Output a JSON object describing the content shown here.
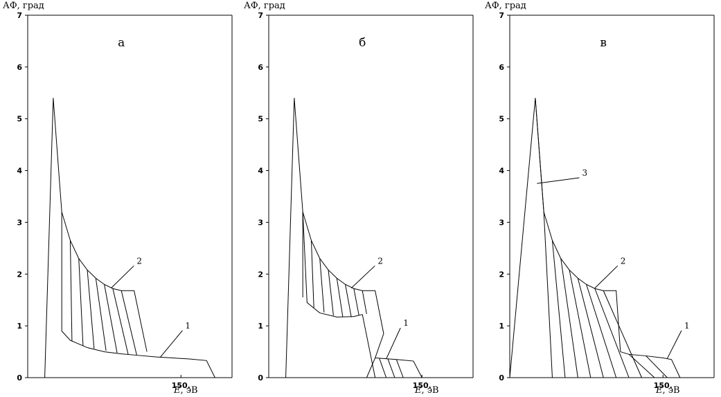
{
  "chart_data": [
    {
      "type": "line",
      "panel_label": "а",
      "ylabel": "АФ, град",
      "xlabel_var": "E",
      "xlabel_unit": ", эВ",
      "ylim": [
        0,
        7
      ],
      "yticks": [
        "0",
        "1",
        "2",
        "3",
        "4",
        "5",
        "6",
        "7"
      ],
      "xticks": [
        {
          "x": 150,
          "label": "150."
        }
      ],
      "xlim": [
        -30,
        210
      ],
      "peak": [
        [
          -10,
          0
        ],
        [
          0,
          5.4
        ]
      ],
      "series": [
        {
          "name": "1",
          "points": [
            [
              10,
              0.9
            ],
            [
              20,
              0.72
            ],
            [
              40,
              0.58
            ],
            [
              60,
              0.5
            ],
            [
              80,
              0.46
            ],
            [
              100,
              0.43
            ],
            [
              120,
              0.4
            ],
            [
              140,
              0.38
            ],
            [
              160,
              0.36
            ],
            [
              180,
              0.33
            ],
            [
              190,
              0.0
            ]
          ]
        },
        {
          "name": "2",
          "points": [
            [
              0,
              5.4
            ],
            [
              10,
              3.2
            ],
            [
              20,
              2.65
            ],
            [
              30,
              2.3
            ],
            [
              40,
              2.08
            ],
            [
              50,
              1.92
            ],
            [
              60,
              1.8
            ],
            [
              70,
              1.72
            ],
            [
              80,
              1.68
            ],
            [
              95,
              1.68
            ],
            [
              110,
              0.5
            ]
          ]
        }
      ],
      "hatch": [
        [
          [
            10,
            3.2
          ],
          [
            10,
            0.9
          ]
        ],
        [
          [
            20,
            2.65
          ],
          [
            22,
            0.7
          ]
        ],
        [
          [
            30,
            2.3
          ],
          [
            35,
            0.62
          ]
        ],
        [
          [
            40,
            2.08
          ],
          [
            48,
            0.56
          ]
        ],
        [
          [
            50,
            1.92
          ],
          [
            62,
            0.52
          ]
        ],
        [
          [
            60,
            1.8
          ],
          [
            75,
            0.48
          ]
        ],
        [
          [
            70,
            1.72
          ],
          [
            88,
            0.45
          ]
        ],
        [
          [
            80,
            1.68
          ],
          [
            98,
            0.44
          ]
        ]
      ],
      "curve_labels": [
        {
          "text": "1",
          "at": [
            126,
            0.4
          ],
          "label": [
            155,
            0.95
          ]
        },
        {
          "text": "2",
          "at": [
            68,
            1.73
          ],
          "label": [
            98,
            2.2
          ]
        }
      ]
    },
    {
      "type": "line",
      "panel_label": "б",
      "ylabel": "АФ, град",
      "xlabel_var": "E",
      "xlabel_unit": ", эВ",
      "ylim": [
        0,
        7
      ],
      "yticks": [
        "0",
        "1",
        "2",
        "3",
        "4",
        "5",
        "6",
        "7"
      ],
      "xticks": [
        {
          "x": 150,
          "label": "150."
        }
      ],
      "xlim": [
        -30,
        210
      ],
      "peak": [
        [
          -10,
          0
        ],
        [
          0,
          5.4
        ]
      ],
      "series": [
        {
          "name": "1",
          "points": [
            [
              95,
              0.38
            ],
            [
              120,
              0.35
            ],
            [
              140,
              0.32
            ],
            [
              150,
              0.0
            ]
          ]
        },
        {
          "name": "2",
          "points": [
            [
              0,
              5.4
            ],
            [
              10,
              3.2
            ],
            [
              20,
              2.65
            ],
            [
              30,
              2.3
            ],
            [
              40,
              2.08
            ],
            [
              50,
              1.92
            ],
            [
              60,
              1.8
            ],
            [
              70,
              1.72
            ],
            [
              80,
              1.68
            ],
            [
              95,
              1.68
            ],
            [
              105,
              0.85
            ],
            [
              95,
              0.38
            ],
            [
              85,
              0.0
            ]
          ]
        },
        {
          "name": "",
          "points": [
            [
              10,
              3.2
            ],
            [
              15,
              1.45
            ],
            [
              30,
              1.25
            ],
            [
              50,
              1.17
            ],
            [
              70,
              1.18
            ],
            [
              80,
              1.22
            ],
            [
              95,
              0.0
            ]
          ]
        }
      ],
      "hatch": [
        [
          [
            10,
            3.2
          ],
          [
            10,
            1.55
          ]
        ],
        [
          [
            20,
            2.65
          ],
          [
            23,
            1.35
          ]
        ],
        [
          [
            30,
            2.3
          ],
          [
            35,
            1.26
          ]
        ],
        [
          [
            40,
            2.08
          ],
          [
            46,
            1.2
          ]
        ],
        [
          [
            50,
            1.92
          ],
          [
            57,
            1.17
          ]
        ],
        [
          [
            60,
            1.8
          ],
          [
            67,
            1.17
          ]
        ],
        [
          [
            70,
            1.72
          ],
          [
            76,
            1.2
          ]
        ],
        [
          [
            80,
            1.68
          ],
          [
            85,
            1.23
          ]
        ],
        [
          [
            100,
            0.37
          ],
          [
            108,
            0.0
          ]
        ],
        [
          [
            110,
            0.36
          ],
          [
            118,
            0.0
          ]
        ],
        [
          [
            120,
            0.35
          ],
          [
            128,
            0.0
          ]
        ]
      ],
      "curve_labels": [
        {
          "text": "1",
          "at": [
            108,
            0.36
          ],
          "label": [
            128,
            1.0
          ]
        },
        {
          "text": "2",
          "at": [
            67,
            1.73
          ],
          "label": [
            98,
            2.2
          ]
        }
      ]
    },
    {
      "type": "line",
      "panel_label": "в",
      "ylabel": "АФ, град",
      "xlabel_var": "E",
      "xlabel_unit": ", эВ",
      "ylim": [
        0,
        7
      ],
      "yticks": [
        "0",
        "1",
        "2",
        "3",
        "4",
        "5",
        "6",
        "7"
      ],
      "xticks": [
        {
          "x": 150,
          "label": "150."
        }
      ],
      "xlim": [
        -30,
        210
      ],
      "peak": [
        [
          -30,
          0
        ],
        [
          0,
          5.4
        ]
      ],
      "series": [
        {
          "name": "1",
          "points": [
            [
              100,
              0.5
            ],
            [
              110,
              0.45
            ],
            [
              130,
              0.42
            ],
            [
              150,
              0.38
            ],
            [
              160,
              0.35
            ],
            [
              170,
              0.0
            ]
          ]
        },
        {
          "name": "2",
          "points": [
            [
              0,
              5.4
            ],
            [
              10,
              3.2
            ],
            [
              20,
              2.65
            ],
            [
              30,
              2.3
            ],
            [
              40,
              2.08
            ],
            [
              50,
              1.92
            ],
            [
              60,
              1.8
            ],
            [
              70,
              1.72
            ],
            [
              80,
              1.68
            ],
            [
              95,
              1.68
            ],
            [
              100,
              0.5
            ]
          ]
        },
        {
          "name": "3",
          "points": [
            [
              0,
              5.4
            ],
            [
              10,
              3.2
            ],
            [
              20,
              0.0
            ]
          ]
        }
      ],
      "hatch": [
        [
          [
            20,
            2.65
          ],
          [
            35,
            0.0
          ]
        ],
        [
          [
            30,
            2.3
          ],
          [
            50,
            0.0
          ]
        ],
        [
          [
            40,
            2.08
          ],
          [
            65,
            0.0
          ]
        ],
        [
          [
            50,
            1.92
          ],
          [
            80,
            0.0
          ]
        ],
        [
          [
            60,
            1.8
          ],
          [
            95,
            0.0
          ]
        ],
        [
          [
            70,
            1.72
          ],
          [
            110,
            0.0
          ]
        ],
        [
          [
            80,
            1.68
          ],
          [
            125,
            0.0
          ]
        ],
        [
          [
            110,
            0.45
          ],
          [
            140,
            0.0
          ]
        ],
        [
          [
            130,
            0.42
          ],
          [
            155,
            0.0
          ]
        ]
      ],
      "curve_labels": [
        {
          "text": "1",
          "at": [
            155,
            0.37
          ],
          "label": [
            175,
            0.95
          ]
        },
        {
          "text": "2",
          "at": [
            70,
            1.73
          ],
          "label": [
            100,
            2.2
          ]
        },
        {
          "text": "3",
          "at": [
            2,
            3.75
          ],
          "label": [
            55,
            3.9
          ]
        }
      ]
    }
  ]
}
